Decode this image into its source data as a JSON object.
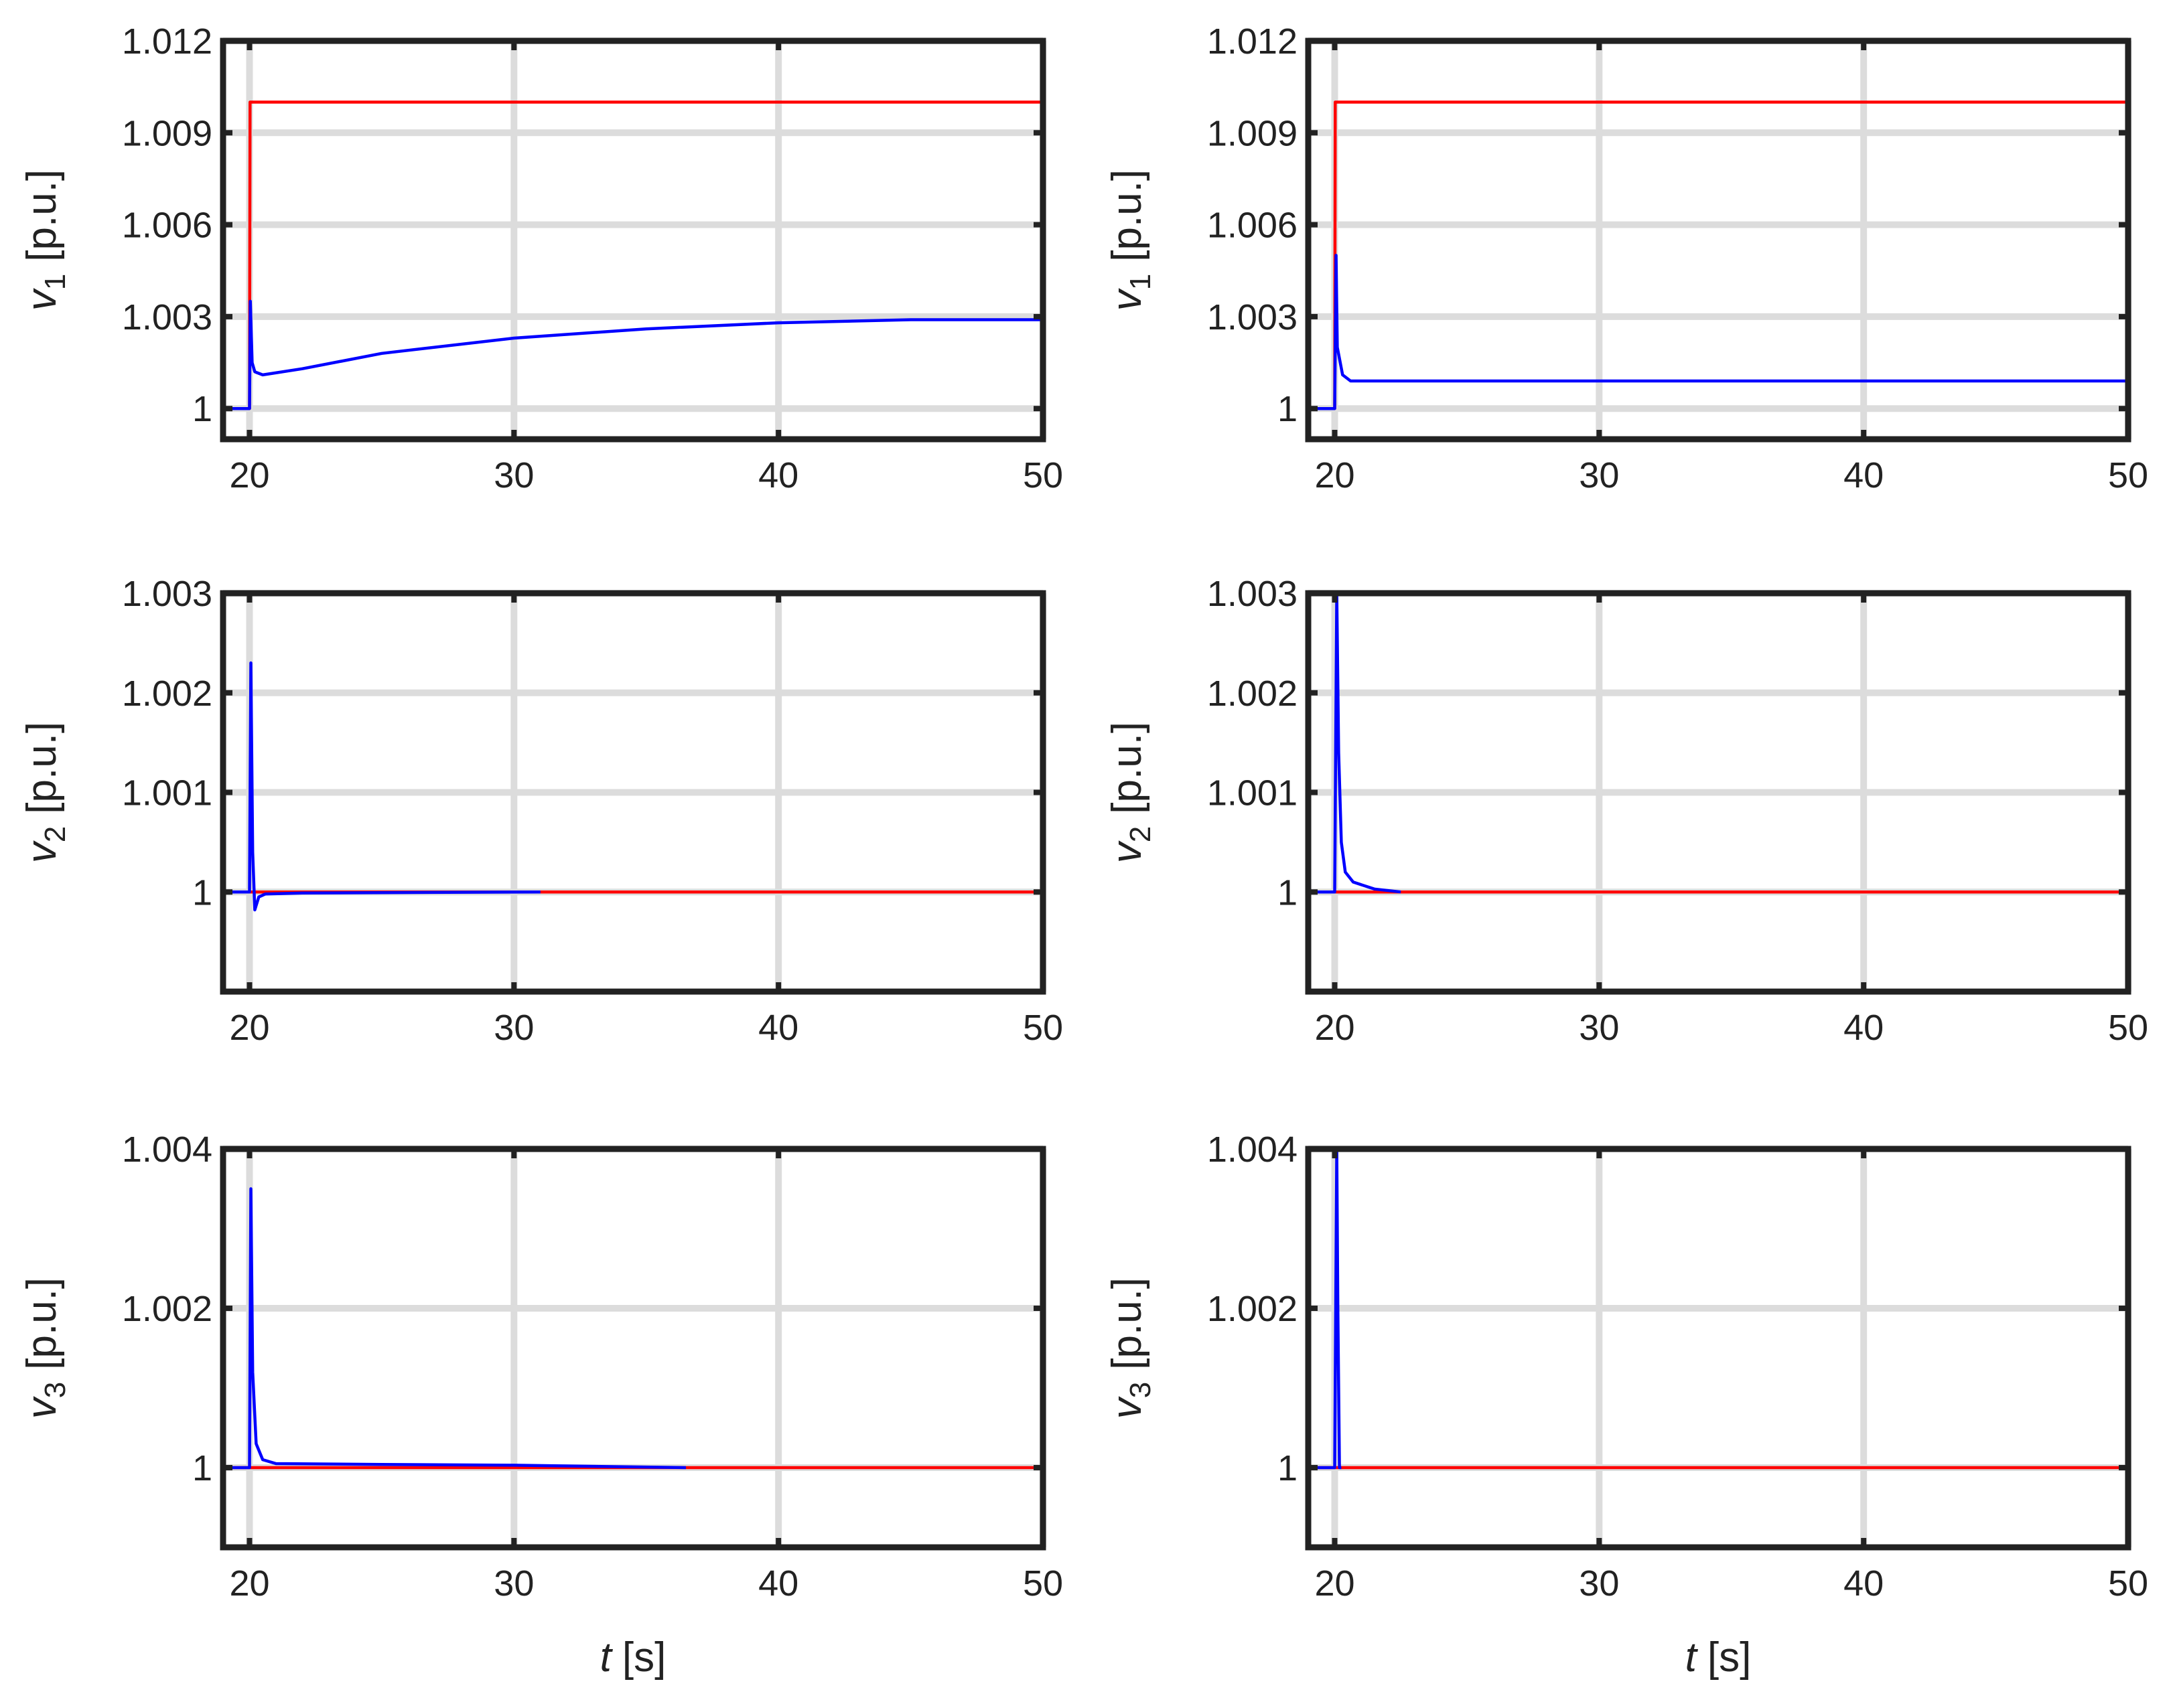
{
  "colors": {
    "grid": "#dcdcdc",
    "frame": "#222222",
    "reference": "#ff0000",
    "response": "#0000ff"
  },
  "chart_data": [
    {
      "type": "line",
      "panel": "top-left",
      "ylabel": {
        "var": "v",
        "sub": "1",
        "unit": "[p.u.]"
      },
      "xlabel": null,
      "xlim": [
        19,
        50
      ],
      "ylim": [
        0.999,
        1.012
      ],
      "xticks": [
        20,
        30,
        40,
        50
      ],
      "yticks": [
        1,
        1.003,
        1.006,
        1.009,
        1.012
      ],
      "yticklabels": [
        "1",
        "1.003",
        "1.006",
        "1.009",
        "1.012"
      ],
      "grid": true,
      "series": [
        {
          "color": "#ff0000",
          "x": [
            19,
            20,
            20.02,
            50
          ],
          "y": [
            1.0,
            1.0,
            1.01,
            1.01
          ]
        },
        {
          "color": "#0000ff",
          "x": [
            19,
            20,
            20.03,
            20.1,
            20.2,
            20.5,
            22,
            25,
            30,
            35,
            40,
            45,
            50
          ],
          "y": [
            1.0,
            1.0,
            1.0035,
            1.0015,
            1.0012,
            1.0011,
            1.0013,
            1.0018,
            1.0023,
            1.0026,
            1.0028,
            1.0029,
            1.0029
          ]
        }
      ]
    },
    {
      "type": "line",
      "panel": "top-right",
      "ylabel": {
        "var": "v",
        "sub": "1",
        "unit": "[p.u.]"
      },
      "xlabel": null,
      "xlim": [
        19,
        50
      ],
      "ylim": [
        0.999,
        1.012
      ],
      "xticks": [
        20,
        30,
        40,
        50
      ],
      "yticks": [
        1,
        1.003,
        1.006,
        1.009,
        1.012
      ],
      "yticklabels": [
        "1",
        "1.003",
        "1.006",
        "1.009",
        "1.012"
      ],
      "grid": true,
      "series": [
        {
          "color": "#ff0000",
          "x": [
            19,
            20,
            20.02,
            50
          ],
          "y": [
            1.0,
            1.0,
            1.01,
            1.01
          ]
        },
        {
          "color": "#0000ff",
          "x": [
            19,
            20,
            20.05,
            20.1,
            20.3,
            20.6,
            21,
            50
          ],
          "y": [
            1.0,
            1.0,
            1.005,
            1.002,
            1.0011,
            1.0009,
            1.0009,
            1.0009
          ]
        }
      ]
    },
    {
      "type": "line",
      "panel": "middle-left",
      "ylabel": {
        "var": "v",
        "sub": "2",
        "unit": "[p.u.]"
      },
      "xlabel": null,
      "xlim": [
        19,
        50
      ],
      "ylim": [
        0.999,
        1.003
      ],
      "xticks": [
        20,
        30,
        40,
        50
      ],
      "yticks": [
        1,
        1.001,
        1.002,
        1.003
      ],
      "yticklabels": [
        "1",
        "1.001",
        "1.002",
        "1.003"
      ],
      "grid": true,
      "series": [
        {
          "color": "#ff0000",
          "x": [
            19,
            50
          ],
          "y": [
            1.0,
            1.0
          ]
        },
        {
          "color": "#0000ff",
          "x": [
            19,
            20,
            20.05,
            20.12,
            20.2,
            20.35,
            20.6,
            22,
            31
          ],
          "y": [
            1.0,
            1.0,
            1.0023,
            1.0004,
            0.99982,
            0.99995,
            0.99998,
            0.99999,
            1.0
          ]
        }
      ]
    },
    {
      "type": "line",
      "panel": "middle-right",
      "ylabel": {
        "var": "v",
        "sub": "2",
        "unit": "[p.u.]"
      },
      "xlabel": null,
      "xlim": [
        19,
        50
      ],
      "ylim": [
        0.999,
        1.003
      ],
      "xticks": [
        20,
        30,
        40,
        50
      ],
      "yticks": [
        1,
        1.001,
        1.002,
        1.003
      ],
      "yticklabels": [
        "1",
        "1.001",
        "1.002",
        "1.003"
      ],
      "grid": true,
      "series": [
        {
          "color": "#ff0000",
          "x": [
            19,
            50
          ],
          "y": [
            1.0,
            1.0
          ]
        },
        {
          "color": "#0000ff",
          "x": [
            19,
            20,
            20.08,
            20.15,
            20.25,
            20.4,
            20.7,
            21.5,
            22.5
          ],
          "y": [
            1.0,
            1.0,
            1.003,
            1.0014,
            1.0005,
            1.0002,
            1.0001,
            1.00003,
            1.0
          ]
        }
      ]
    },
    {
      "type": "line",
      "panel": "bottom-left",
      "ylabel": {
        "var": "v",
        "sub": "3",
        "unit": "[p.u.]"
      },
      "xlabel": {
        "var": "t",
        "unit": "[s]"
      },
      "xlim": [
        19,
        50
      ],
      "ylim": [
        0.999,
        1.004
      ],
      "xticks": [
        20,
        30,
        40,
        50
      ],
      "yticks": [
        1,
        1.002,
        1.004
      ],
      "yticklabels": [
        "1",
        "1.002",
        "1.004"
      ],
      "grid": true,
      "series": [
        {
          "color": "#ff0000",
          "x": [
            19,
            50
          ],
          "y": [
            1.0,
            1.0
          ]
        },
        {
          "color": "#0000ff",
          "x": [
            19,
            20,
            20.05,
            20.12,
            20.25,
            20.5,
            21,
            25,
            30,
            36.5
          ],
          "y": [
            1.0,
            1.0,
            1.0035,
            1.0012,
            1.0003,
            1.0001,
            1.00005,
            1.00004,
            1.00003,
            1.0
          ]
        }
      ]
    },
    {
      "type": "line",
      "panel": "bottom-right",
      "ylabel": {
        "var": "v",
        "sub": "3",
        "unit": "[p.u.]"
      },
      "xlabel": {
        "var": "t",
        "unit": "[s]"
      },
      "xlim": [
        19,
        50
      ],
      "ylim": [
        0.999,
        1.004
      ],
      "xticks": [
        20,
        30,
        40,
        50
      ],
      "yticks": [
        1,
        1.002,
        1.004
      ],
      "yticklabels": [
        "1",
        "1.002",
        "1.004"
      ],
      "grid": true,
      "series": [
        {
          "color": "#ff0000",
          "x": [
            19,
            50
          ],
          "y": [
            1.0,
            1.0
          ]
        },
        {
          "color": "#0000ff",
          "x": [
            19,
            20,
            20.08,
            20.12,
            20.18,
            20.25
          ],
          "y": [
            1.0,
            1.0,
            1.004,
            1.002,
            1.0,
            1.0
          ]
        }
      ]
    }
  ]
}
